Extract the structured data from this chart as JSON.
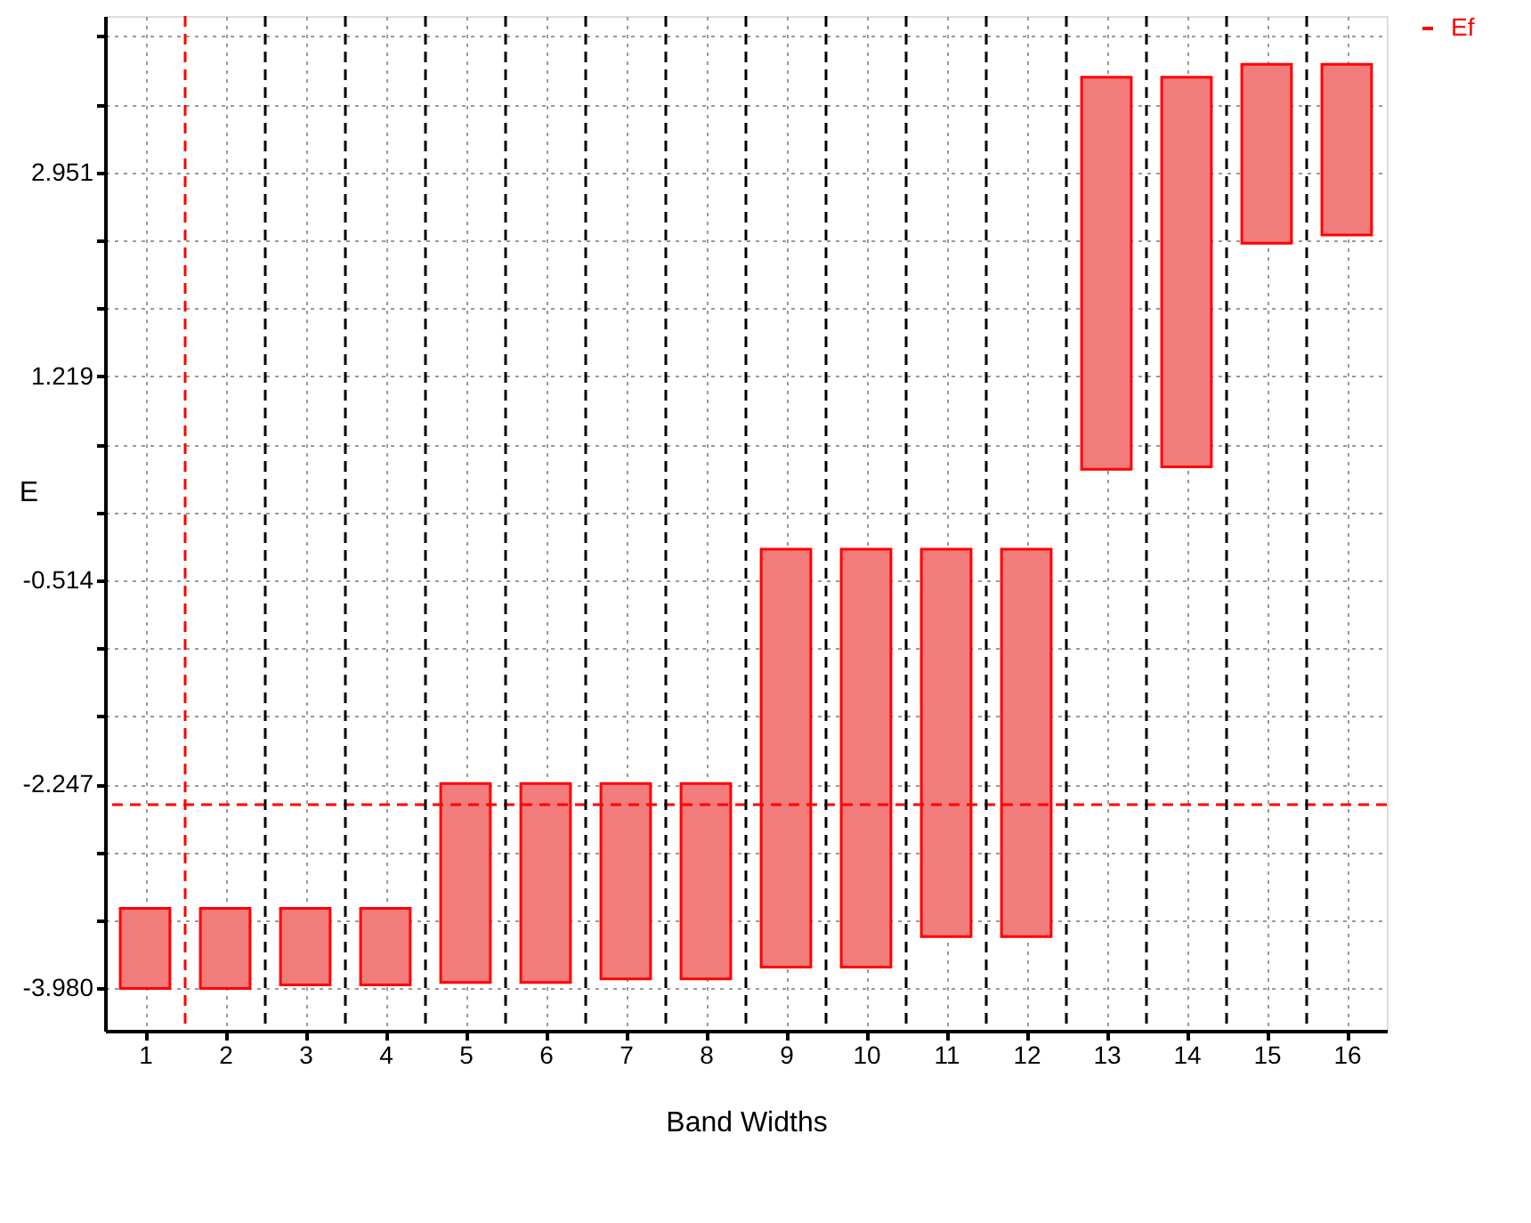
{
  "chart_data": {
    "type": "bar",
    "xlabel": "Band Widths",
    "ylabel": "E",
    "x": [
      1,
      2,
      3,
      4,
      5,
      6,
      7,
      8,
      9,
      10,
      11,
      12,
      13,
      14,
      15,
      16
    ],
    "base": [
      -3.98,
      -3.98,
      -3.95,
      -3.95,
      -3.93,
      -3.93,
      -3.9,
      -3.9,
      -3.8,
      -3.8,
      -3.54,
      -3.54,
      0.43,
      0.45,
      2.35,
      2.42
    ],
    "values": [
      0.68,
      0.68,
      0.65,
      0.65,
      1.69,
      1.69,
      1.66,
      1.66,
      3.55,
      3.55,
      3.29,
      3.29,
      3.33,
      3.31,
      1.52,
      1.45
    ],
    "color": "#f27c7c",
    "xlim": [
      0.5,
      16.5
    ],
    "xticks": [
      1,
      2,
      3,
      4,
      5,
      6,
      7,
      8,
      9,
      10,
      11,
      12,
      13,
      14,
      15,
      16
    ],
    "ylim": [
      -4.34,
      4.28
    ],
    "yticks": [
      {
        "value": -3.98,
        "label": "-3.980"
      },
      {
        "value": -3.402,
        "label": null
      },
      {
        "value": -2.825,
        "label": null
      },
      {
        "value": -2.247,
        "label": "-2.247"
      },
      {
        "value": -1.669,
        "label": null
      },
      {
        "value": -1.092,
        "label": null
      },
      {
        "value": -0.514,
        "label": "-0.514"
      },
      {
        "value": 0.064,
        "label": null
      },
      {
        "value": 0.641,
        "label": null
      },
      {
        "value": 1.219,
        "label": "1.219"
      },
      {
        "value": 1.797,
        "label": null
      },
      {
        "value": 2.374,
        "label": null
      },
      {
        "value": 2.951,
        "label": "2.951"
      },
      {
        "value": 3.529,
        "label": null
      },
      {
        "value": 4.107,
        "label": null
      }
    ],
    "grid": true,
    "legend": "top right",
    "ref_lines": [
      {
        "axis": "y",
        "value": -2.42,
        "label": "Ef",
        "color": "#ff0000",
        "line_style": "dashed"
      },
      {
        "axis": "x",
        "value": 1.5,
        "color": "#ff0000",
        "line_style": "dashed"
      },
      {
        "axis": "x",
        "value": 2.5,
        "color": "#000000",
        "line_style": "dashed"
      },
      {
        "axis": "x",
        "value": 3.5,
        "color": "#000000",
        "line_style": "dashed"
      },
      {
        "axis": "x",
        "value": 4.5,
        "color": "#000000",
        "line_style": "dashed"
      },
      {
        "axis": "x",
        "value": 5.5,
        "color": "#000000",
        "line_style": "dashed"
      },
      {
        "axis": "x",
        "value": 6.5,
        "color": "#000000",
        "line_style": "dashed"
      },
      {
        "axis": "x",
        "value": 7.5,
        "color": "#000000",
        "line_style": "dashed"
      },
      {
        "axis": "x",
        "value": 8.5,
        "color": "#000000",
        "line_style": "dashed"
      },
      {
        "axis": "x",
        "value": 9.5,
        "color": "#000000",
        "line_style": "dashed"
      },
      {
        "axis": "x",
        "value": 10.5,
        "color": "#000000",
        "line_style": "dashed"
      },
      {
        "axis": "x",
        "value": 11.5,
        "color": "#000000",
        "line_style": "dashed"
      },
      {
        "axis": "x",
        "value": 12.5,
        "color": "#000000",
        "line_style": "dashed"
      },
      {
        "axis": "x",
        "value": 13.5,
        "color": "#000000",
        "line_style": "dashed"
      },
      {
        "axis": "x",
        "value": 14.5,
        "color": "#000000",
        "line_style": "dashed"
      },
      {
        "axis": "x",
        "value": 15.5,
        "color": "#000000",
        "line_style": "dashed"
      }
    ]
  }
}
